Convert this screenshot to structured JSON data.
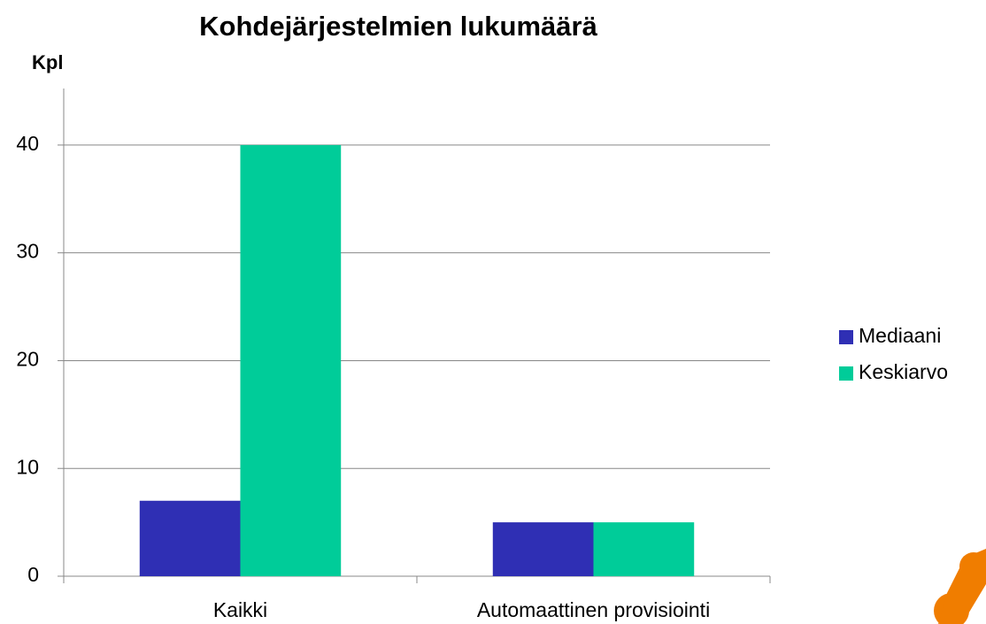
{
  "chart_data": {
    "type": "bar",
    "title": "Kohdejärjestelmien lukumäärä",
    "y_label": "Kpl",
    "categories": [
      "Kaikki",
      "Automaattinen provisiointi"
    ],
    "series": [
      {
        "name": "Mediaani",
        "color": "#2f2fb4",
        "values": [
          7,
          5
        ]
      },
      {
        "name": "Keskiarvo",
        "color": "#00cc99",
        "values": [
          40,
          5
        ]
      }
    ],
    "ylim": [
      0,
      45
    ],
    "yticks": [
      0,
      10,
      20,
      30,
      40
    ],
    "grid": true,
    "legend": "right"
  }
}
